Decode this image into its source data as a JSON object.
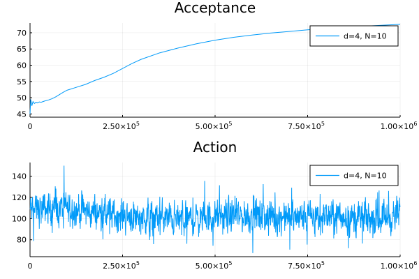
{
  "chart_data": [
    {
      "type": "line",
      "title": "Acceptance",
      "xlabel": "",
      "ylabel": "",
      "xlim": [
        0,
        1000000
      ],
      "ylim": [
        44,
        73
      ],
      "x_ticks": [
        {
          "value": 0,
          "label": "0"
        },
        {
          "value": 250000,
          "label": "2.50×10",
          "exp": "5"
        },
        {
          "value": 500000,
          "label": "5.00×10",
          "exp": "5"
        },
        {
          "value": 750000,
          "label": "7.50×10",
          "exp": "5"
        },
        {
          "value": 1000000,
          "label": "1.00×10",
          "exp": "6"
        }
      ],
      "y_ticks": [
        45,
        50,
        55,
        60,
        65,
        70
      ],
      "grid": true,
      "legend_position": "top-right",
      "series": [
        {
          "name": "d=4, N=10",
          "color": "#009af9",
          "points": [
            [
              0,
              45.0
            ],
            [
              2000,
              49.5
            ],
            [
              5000,
              47.5
            ],
            [
              8000,
              48.8
            ],
            [
              12000,
              48.2
            ],
            [
              16000,
              48.6
            ],
            [
              20000,
              48.4
            ],
            [
              25000,
              48.7
            ],
            [
              30000,
              48.6
            ],
            [
              40000,
              49.0
            ],
            [
              50000,
              49.3
            ],
            [
              60000,
              49.7
            ],
            [
              70000,
              50.3
            ],
            [
              80000,
              51.0
            ],
            [
              90000,
              51.7
            ],
            [
              100000,
              52.3
            ],
            [
              125000,
              53.2
            ],
            [
              150000,
              54.1
            ],
            [
              175000,
              55.3
            ],
            [
              200000,
              56.3
            ],
            [
              225000,
              57.5
            ],
            [
              250000,
              59.0
            ],
            [
              275000,
              60.5
            ],
            [
              300000,
              61.8
            ],
            [
              350000,
              63.8
            ],
            [
              400000,
              65.3
            ],
            [
              450000,
              66.6
            ],
            [
              500000,
              67.7
            ],
            [
              550000,
              68.6
            ],
            [
              600000,
              69.3
            ],
            [
              650000,
              69.9
            ],
            [
              700000,
              70.4
            ],
            [
              750000,
              70.9
            ],
            [
              800000,
              71.3
            ],
            [
              850000,
              71.7
            ],
            [
              900000,
              72.0
            ],
            [
              950000,
              72.3
            ],
            [
              1000000,
              72.6
            ]
          ]
        }
      ]
    },
    {
      "type": "line",
      "title": "Action",
      "xlabel": "",
      "ylabel": "",
      "xlim": [
        0,
        1000000
      ],
      "ylim": [
        64,
        153
      ],
      "x_ticks": [
        {
          "value": 0,
          "label": "0"
        },
        {
          "value": 250000,
          "label": "2.50×10",
          "exp": "5"
        },
        {
          "value": 500000,
          "label": "5.00×10",
          "exp": "5"
        },
        {
          "value": 750000,
          "label": "7.50×10",
          "exp": "5"
        },
        {
          "value": 1000000,
          "label": "1.00×10",
          "exp": "6"
        }
      ],
      "y_ticks": [
        80,
        100,
        120,
        140
      ],
      "grid": true,
      "legend_position": "top-right",
      "series": [
        {
          "name": "d=4, N=10",
          "color": "#009af9",
          "noisy": true,
          "samples": 1600,
          "mean_profile": [
            [
              0,
              108
            ],
            [
              100000,
              110
            ],
            [
              200000,
              104
            ],
            [
              300000,
              102
            ],
            [
              400000,
              99
            ],
            [
              500000,
              101
            ],
            [
              600000,
              103
            ],
            [
              700000,
              101
            ],
            [
              800000,
              102
            ],
            [
              900000,
              100
            ],
            [
              1000000,
              103
            ]
          ],
          "noise_amplitude": 11,
          "clip": [
            66,
            150
          ]
        }
      ]
    }
  ]
}
